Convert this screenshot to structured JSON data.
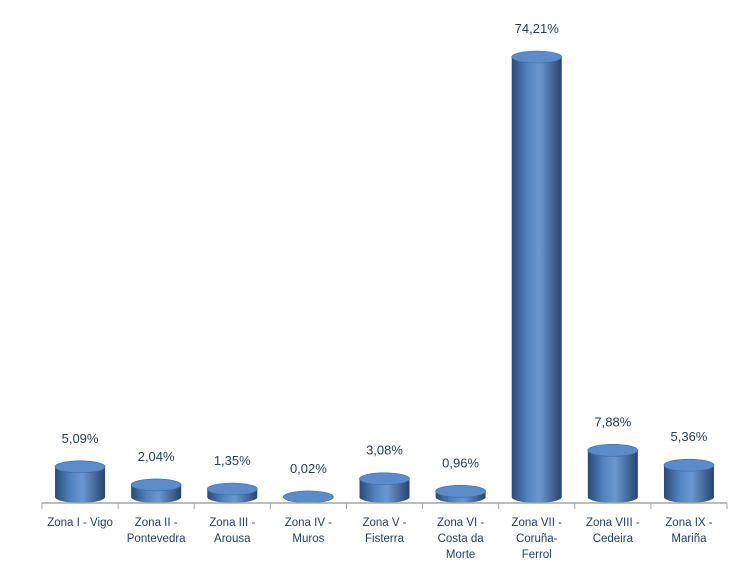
{
  "chart_data": {
    "type": "bar",
    "style": "3d-cylinder",
    "categories": [
      [
        "Zona I - Vigo"
      ],
      [
        "Zona II -",
        "Pontevedra"
      ],
      [
        "Zona III -",
        "Arousa"
      ],
      [
        "Zona IV -",
        "Muros"
      ],
      [
        "Zona V -",
        "Fisterra"
      ],
      [
        "Zona VI -",
        "Costa da",
        "Morte"
      ],
      [
        "Zona VII -",
        "Coruña-",
        "Ferrol"
      ],
      [
        "Zona VIII -",
        "Cedeira"
      ],
      [
        "Zona IX -",
        "Mariña"
      ]
    ],
    "values": [
      5.09,
      2.04,
      1.35,
      0.02,
      3.08,
      0.96,
      74.21,
      7.88,
      5.36
    ],
    "data_labels": [
      "5,09%",
      "2,04%",
      "1,35%",
      "0,02%",
      "3,08%",
      "0,96%",
      "74,21%",
      "7,88%",
      "5,36%"
    ],
    "ylim": [
      0,
      74.21
    ],
    "grid": false,
    "legend": "none",
    "colors": {
      "bar": "#4f81bd",
      "bar_dark": "#2a4a78",
      "text": "#1f3b5e",
      "axis": "#a6a6a6"
    }
  }
}
